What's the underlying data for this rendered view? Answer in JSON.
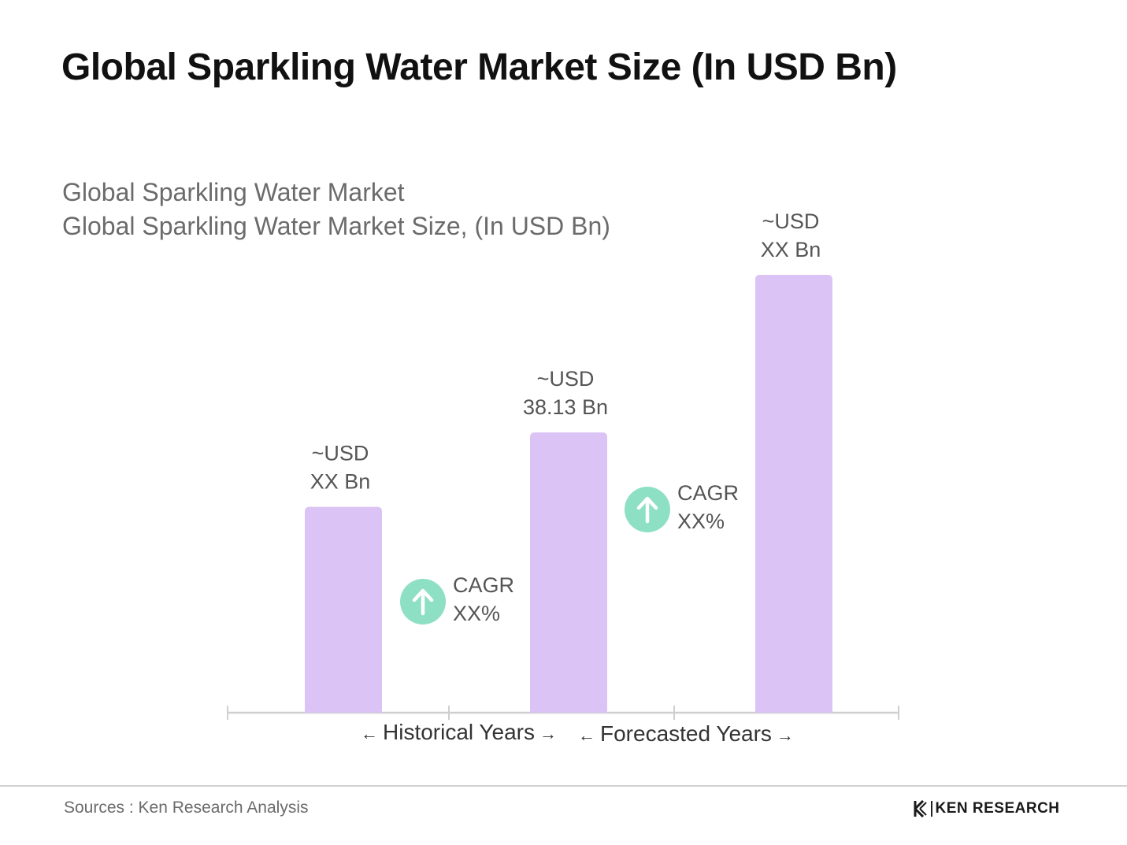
{
  "page": {
    "title": "Global Sparkling Water Market Size (In USD Bn)",
    "subtitle_line1": "Global Sparkling Water Market",
    "subtitle_line2": "Global Sparkling Water Market Size, (In USD Bn)"
  },
  "chart_data": {
    "type": "bar",
    "title": "Global Sparkling Water Market",
    "subtitle": "Global Sparkling Water Market Size, (In USD Bn)",
    "categories": [
      "",
      "",
      ""
    ],
    "values": [
      null,
      38.13,
      null
    ],
    "relative_heights": [
      0.47,
      0.64,
      1.0
    ],
    "bar_labels": [
      {
        "line1": "~USD",
        "line2": "XX Bn"
      },
      {
        "line1": "~USD",
        "line2": "38.13 Bn"
      },
      {
        "line1": "~USD",
        "line2": "XX Bn"
      }
    ],
    "bar_color": "#dcc3f6",
    "cagr": [
      {
        "label": "CAGR",
        "value": "XX%",
        "icon": "arrow-up-icon",
        "color": "#8ee0c4"
      },
      {
        "label": "CAGR",
        "value": "XX%",
        "icon": "arrow-up-icon",
        "color": "#8ee0c4"
      }
    ],
    "periods": [
      {
        "label": "Historical Years"
      },
      {
        "label": "Forecasted Years"
      }
    ],
    "grid": false,
    "legend": "none"
  },
  "footer": {
    "source": "Sources : Ken Research Analysis",
    "brand": "KEN RESEARCH",
    "brand_icon": "ken-research-logo-icon"
  }
}
